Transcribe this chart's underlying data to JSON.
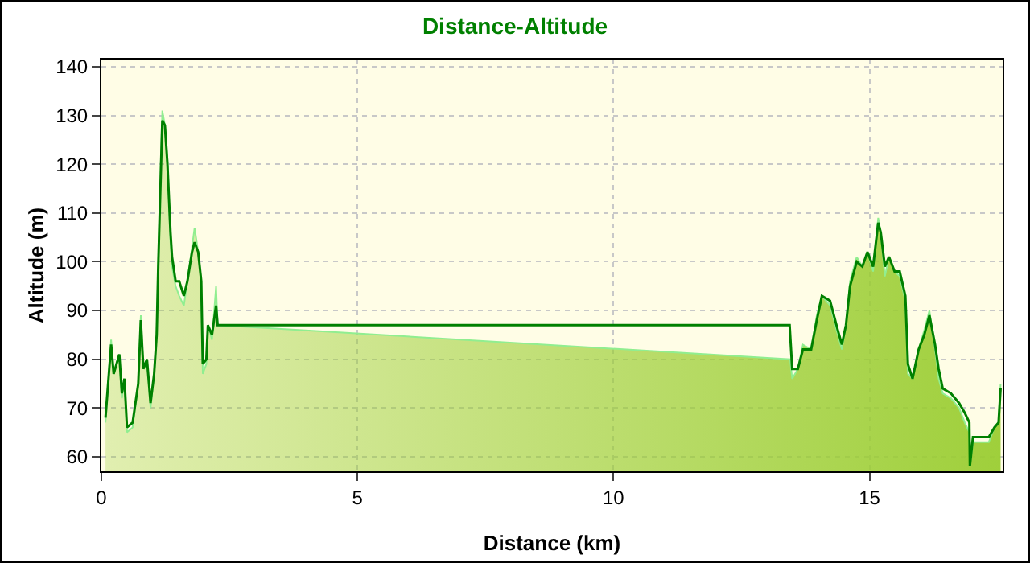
{
  "chart_data": {
    "type": "line",
    "title": "Distance-Altitude",
    "xlabel": "Distance (km)",
    "ylabel": "Altitude (m)",
    "xlim": [
      0,
      17.6
    ],
    "ylim": [
      57,
      141.5
    ],
    "xticks": [
      0,
      5,
      10,
      15
    ],
    "yticks": [
      60,
      70,
      80,
      90,
      100,
      110,
      120,
      130,
      140
    ],
    "grid": true,
    "marker": "none",
    "line_style": "solid",
    "series": [
      {
        "type": "area",
        "color": "#90ee90",
        "x": [
          0.08,
          0.19,
          0.24,
          0.35,
          0.4,
          0.45,
          0.5,
          0.61,
          0.72,
          0.77,
          0.82,
          0.89,
          0.96,
          1.03,
          1.08,
          1.11,
          1.16,
          1.19,
          1.24,
          1.29,
          1.35,
          1.38,
          1.45,
          1.52,
          1.61,
          1.68,
          1.77,
          1.82,
          1.89,
          1.95,
          1.98,
          2.05,
          2.08,
          2.16,
          2.24,
          2.27,
          13.45,
          13.49,
          13.6,
          13.7,
          13.86,
          13.97,
          14.07,
          14.23,
          14.38,
          14.46,
          14.54,
          14.62,
          14.75,
          14.86,
          14.96,
          15.07,
          15.17,
          15.22,
          15.3,
          15.38,
          15.49,
          15.59,
          15.7,
          15.75,
          15.84,
          15.96,
          16.07,
          16.17,
          16.28,
          16.35,
          16.43,
          16.59,
          16.75,
          16.86,
          16.95,
          16.96,
          17.02,
          17.33,
          17.44,
          17.52,
          17.56
        ],
        "values": [
          67,
          84,
          77,
          81,
          72,
          76,
          65,
          66,
          75,
          89,
          78,
          80,
          70,
          77,
          85,
          99,
          120,
          131,
          128,
          121,
          104,
          99,
          95,
          93,
          91,
          96,
          103,
          107,
          102,
          96,
          77,
          79,
          87,
          84,
          95,
          87,
          80,
          76,
          78,
          83,
          82,
          89,
          93,
          91,
          85,
          82,
          87,
          96,
          101,
          99,
          102,
          98,
          109,
          106,
          97,
          101,
          98,
          97,
          92,
          77,
          76,
          82,
          86,
          90,
          82,
          76,
          73,
          72,
          70,
          67,
          65,
          58,
          63,
          63,
          66,
          67,
          75
        ]
      },
      {
        "color": "#008000",
        "x": [
          0.08,
          0.19,
          0.24,
          0.35,
          0.4,
          0.45,
          0.5,
          0.61,
          0.72,
          0.77,
          0.82,
          0.89,
          0.96,
          1.03,
          1.08,
          1.11,
          1.16,
          1.19,
          1.24,
          1.29,
          1.35,
          1.38,
          1.45,
          1.52,
          1.61,
          1.68,
          1.77,
          1.82,
          1.89,
          1.95,
          1.98,
          2.05,
          2.08,
          2.16,
          2.24,
          2.27,
          13.44,
          13.49,
          13.6,
          13.7,
          13.86,
          13.97,
          14.07,
          14.23,
          14.38,
          14.46,
          14.54,
          14.62,
          14.75,
          14.86,
          14.96,
          15.07,
          15.17,
          15.22,
          15.3,
          15.38,
          15.49,
          15.59,
          15.7,
          15.75,
          15.84,
          15.96,
          16.07,
          16.17,
          16.28,
          16.35,
          16.43,
          16.59,
          16.75,
          16.86,
          16.95,
          16.96,
          17.02,
          17.33,
          17.44,
          17.52,
          17.56
        ],
        "values": [
          68,
          83,
          77,
          81,
          73,
          76,
          66,
          67,
          75,
          88,
          78,
          80,
          71,
          77,
          85,
          99,
          118,
          129,
          128,
          120,
          106,
          101,
          96,
          96,
          93,
          96,
          102,
          104,
          102,
          96,
          79,
          80,
          87,
          85,
          91,
          87,
          87,
          78,
          78,
          82,
          82,
          88,
          93,
          92,
          86,
          83,
          87,
          95,
          100,
          99,
          102,
          99,
          108,
          106,
          99,
          101,
          98,
          98,
          93,
          79,
          76,
          82,
          85,
          89,
          83,
          78,
          74,
          73,
          71,
          69,
          67,
          58,
          64,
          64,
          66,
          67,
          74
        ]
      }
    ]
  }
}
